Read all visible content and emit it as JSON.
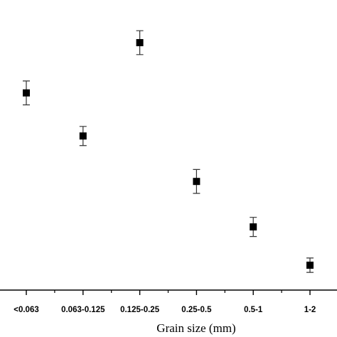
{
  "chart_data": {
    "type": "scatter",
    "title": "",
    "xlabel": "Grain size (mm)",
    "ylabel": "",
    "categories": [
      "<0.063",
      "0.063-0.125",
      "0.125-0.25",
      "0.25-0.5",
      "0.5-1",
      "1-2"
    ],
    "series": [
      {
        "values": [
          0.79,
          0.61,
          1.0,
          0.42,
          0.23,
          0.07
        ],
        "error": [
          0.05,
          0.04,
          0.05,
          0.05,
          0.04,
          0.03
        ]
      }
    ],
    "y_tick_labels_shown": false,
    "grid": false,
    "legend": "none",
    "marker": "square",
    "marker_color": "#000000",
    "errorbar_color": "#333333"
  }
}
